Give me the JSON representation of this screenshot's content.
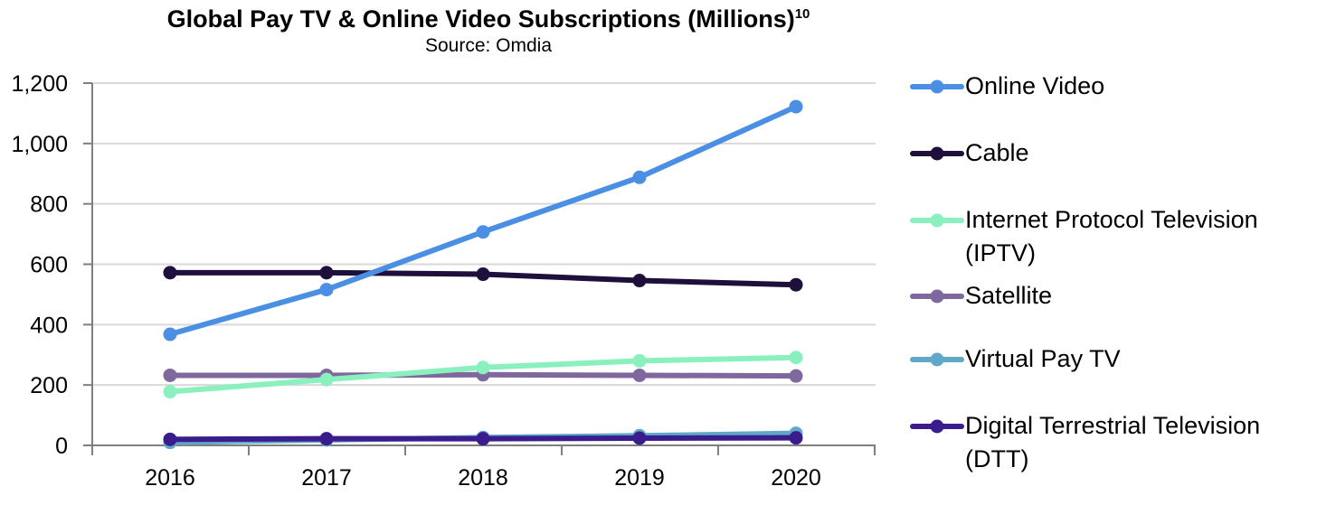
{
  "title": "Global Pay TV & Online Video Subscriptions (Millions)",
  "title_superscript": "10",
  "subtitle": "Source: Omdia",
  "chart_data": {
    "type": "line",
    "categories": [
      "2016",
      "2017",
      "2018",
      "2019",
      "2020"
    ],
    "ylim": [
      0,
      1200
    ],
    "yticks": [
      0,
      200,
      400,
      600,
      800,
      1000,
      1200
    ],
    "ytick_labels": [
      "0",
      "200",
      "400",
      "600",
      "800",
      "1,000",
      "1,200"
    ],
    "grid": "horizontal",
    "legend_position": "right",
    "draw_order": [
      "Cable",
      "Satellite",
      "Internet Protocol Television (IPTV)",
      "Virtual Pay TV",
      "Digital Terrestrial Television (DTT)",
      "Online Video"
    ],
    "series": [
      {
        "name": "Online Video",
        "legend_lines": [
          "Online Video"
        ],
        "color": "#4A8FE3",
        "values": [
          368,
          516,
          707,
          888,
          1122
        ]
      },
      {
        "name": "Cable",
        "legend_lines": [
          "Cable"
        ],
        "color": "#1E0F3C",
        "values": [
          572,
          572,
          567,
          546,
          532
        ]
      },
      {
        "name": "Internet Protocol Television (IPTV)",
        "legend_lines": [
          "Internet Protocol Television",
          "(IPTV)"
        ],
        "color": "#8AF0BE",
        "values": [
          178,
          218,
          258,
          280,
          291
        ]
      },
      {
        "name": "Satellite",
        "legend_lines": [
          "Satellite"
        ],
        "color": "#7E689E",
        "values": [
          232,
          232,
          234,
          232,
          230
        ]
      },
      {
        "name": "Virtual Pay TV",
        "legend_lines": [
          "Virtual Pay TV"
        ],
        "color": "#60A7C8",
        "values": [
          10,
          18,
          26,
          32,
          40
        ]
      },
      {
        "name": "Digital Terrestrial Television (DTT)",
        "legend_lines": [
          "Digital Terrestrial Television",
          "(DTT)"
        ],
        "color": "#3B1C8C",
        "values": [
          20,
          22,
          22,
          24,
          25
        ]
      }
    ]
  }
}
